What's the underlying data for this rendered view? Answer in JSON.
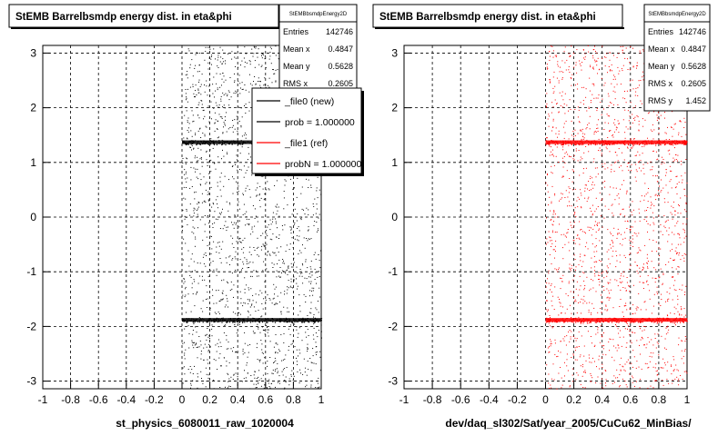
{
  "footer_note": "",
  "chart_data": [
    {
      "type": "scatter",
      "title": "StEMB Barrelbsmdp energy dist. in eta&phi",
      "xlabel": "st_physics_6080011_raw_1020004",
      "ylabel": "",
      "xlim": [
        -1,
        1
      ],
      "ylim": [
        -3.14,
        3.14
      ],
      "xticks": [
        "-1",
        "-0.8",
        "-0.6",
        "-0.4",
        "-0.2",
        "0",
        "0.2",
        "0.4",
        "0.6",
        "0.8",
        "1"
      ],
      "yticks": [
        "-3",
        "-2",
        "-1",
        "0",
        "1",
        "2",
        "3"
      ],
      "grid": true,
      "marker_color": "#000000",
      "point_region": {
        "x": [
          0,
          1
        ],
        "y": [
          -3.14,
          3.14
        ]
      },
      "dense_bands_y": [
        1.37,
        -1.88
      ],
      "stats": {
        "name": "StEMBbsmdpEnergy2D",
        "rows": [
          {
            "label": "Entries",
            "value": "142746"
          },
          {
            "label": "Mean x",
            "value": "0.4847"
          },
          {
            "label": "Mean y",
            "value": "0.5628"
          },
          {
            "label": "RMS x",
            "value": "0.2605"
          }
        ]
      },
      "legend": {
        "placement": "top-right",
        "entries": [
          {
            "label": "_file0 (new)",
            "color": "#000000"
          },
          {
            "label": "prob = 1.000000",
            "color": "#000000"
          },
          {
            "label": "_file1 (ref)",
            "color": "#ff0000"
          },
          {
            "label": "probN = 1.000000",
            "color": "#ff0000"
          }
        ]
      }
    },
    {
      "type": "scatter",
      "title": "StEMB Barrelbsmdp energy dist. in eta&phi",
      "xlabel": "dev/daq_sl302/Sat/year_2005/CuCu62_MinBias/",
      "ylabel": "",
      "xlim": [
        -1,
        1
      ],
      "ylim": [
        -3.14,
        3.14
      ],
      "xticks": [
        "-1",
        "-0.8",
        "-0.6",
        "-0.4",
        "-0.2",
        "0",
        "0.2",
        "0.4",
        "0.6",
        "0.8",
        "1"
      ],
      "yticks": [
        "-3",
        "-2",
        "-1",
        "0",
        "1",
        "2",
        "3"
      ],
      "grid": true,
      "marker_color": "#ff0000",
      "point_region": {
        "x": [
          0,
          1
        ],
        "y": [
          -3.14,
          3.14
        ]
      },
      "dense_bands_y": [
        1.37,
        -1.88
      ],
      "stats": {
        "name": "StEMBbsmdpEnergy2D",
        "rows": [
          {
            "label": "Entries",
            "value": "142746"
          },
          {
            "label": "Mean x",
            "value": "0.4847"
          },
          {
            "label": "Mean y",
            "value": "0.5628"
          },
          {
            "label": "RMS x",
            "value": "0.2605"
          },
          {
            "label": "RMS y",
            "value": "1.452"
          }
        ]
      }
    }
  ]
}
